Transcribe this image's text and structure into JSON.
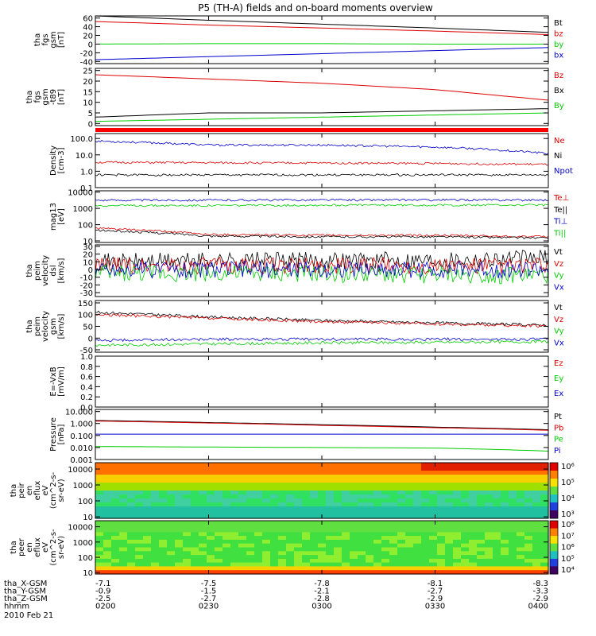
{
  "title": "P5 (TH-A) fields and on-board moments overview",
  "colors": {
    "black": "#000000",
    "red": "#dd0000",
    "green": "#00cc00",
    "blue": "#0000cc",
    "stripe": "#ff0000"
  },
  "panels": [
    {
      "id": "fgs-gsm",
      "ylabel": [
        "tha",
        "fgs",
        "gsm",
        "[nT]"
      ],
      "ticks": [
        "60",
        "40",
        "20",
        "0",
        "-20",
        "-40"
      ],
      "tick_values": [
        60,
        40,
        20,
        0,
        -20,
        -40
      ],
      "ylim": [
        -45,
        65
      ],
      "log": false,
      "legend": [
        {
          "text": "Bt",
          "color": "black"
        },
        {
          "text": "bz",
          "color": "red"
        },
        {
          "text": "by",
          "color": "green"
        },
        {
          "text": "bx",
          "color": "blue"
        }
      ]
    },
    {
      "id": "fgs-t89",
      "ylabel": [
        "tha",
        "fgs",
        "gsm",
        "-t89",
        "[nT]"
      ],
      "ticks": [
        "25",
        "20",
        "15",
        "10",
        "5",
        "0"
      ],
      "tick_values": [
        25,
        20,
        15,
        10,
        5,
        0
      ],
      "ylim": [
        -1,
        26
      ],
      "log": false,
      "legend": [
        {
          "text": "Bz",
          "color": "red"
        },
        {
          "text": "Bx",
          "color": "black"
        },
        {
          "text": "By",
          "color": "green"
        }
      ]
    },
    {
      "id": "density",
      "ylabel": [
        "Density",
        "[cm-3]"
      ],
      "ticks": [
        "100.0",
        "10.0",
        "1.0",
        "0.1"
      ],
      "tick_values": [
        100,
        10,
        1,
        0.1
      ],
      "ylim": [
        0.1,
        200
      ],
      "log": true,
      "legend": [
        {
          "text": "Ne",
          "color": "red"
        },
        {
          "text": "Ni",
          "color": "black"
        },
        {
          "text": "Npot",
          "color": "blue"
        }
      ]
    },
    {
      "id": "temperature",
      "ylabel": [
        "mag13",
        "[eV]"
      ],
      "ticks": [
        "10000",
        "1000",
        "100",
        "10"
      ],
      "tick_values": [
        10000,
        1000,
        100,
        10
      ],
      "ylim": [
        8,
        12000
      ],
      "log": true,
      "legend": [
        {
          "text": "Te⊥",
          "color": "red"
        },
        {
          "text": "Te||",
          "color": "black"
        },
        {
          "text": "Ti⊥",
          "color": "blue"
        },
        {
          "text": "Ti||",
          "color": "green"
        }
      ]
    },
    {
      "id": "peim-velocity",
      "ylabel": [
        "tha",
        "peim",
        "velocity",
        "dsl",
        "[km/s]"
      ],
      "ticks": [
        "30",
        "20",
        "10",
        "0",
        "-10",
        "-20",
        "-30"
      ],
      "tick_values": [
        30,
        20,
        10,
        0,
        -10,
        -20,
        -30
      ],
      "ylim": [
        -35,
        32
      ],
      "log": false,
      "legend": [
        {
          "text": "Vt",
          "color": "black"
        },
        {
          "text": "Vz",
          "color": "red"
        },
        {
          "text": "Vy",
          "color": "green"
        },
        {
          "text": "Vx",
          "color": "blue"
        }
      ]
    },
    {
      "id": "peim-velocity-gsm",
      "ylabel": [
        "tha",
        "peim",
        "velocity",
        "gsm",
        "[km/s]"
      ],
      "ticks": [
        "150",
        "100",
        "50",
        "0",
        "-50"
      ],
      "tick_values": [
        150,
        100,
        50,
        0,
        -50
      ],
      "ylim": [
        -60,
        160
      ],
      "log": false,
      "legend": [
        {
          "text": "Vt",
          "color": "black"
        },
        {
          "text": "Vz",
          "color": "red"
        },
        {
          "text": "Vy",
          "color": "green"
        },
        {
          "text": "Vx",
          "color": "blue"
        }
      ]
    },
    {
      "id": "efield",
      "ylabel": [
        "E=-VxB",
        "[mV/m]"
      ],
      "ticks": [
        "1.0",
        "0.8",
        "0.6",
        "0.4",
        "0.2",
        "0.0"
      ],
      "tick_values": [
        1.0,
        0.8,
        0.6,
        0.4,
        0.2,
        0.0
      ],
      "ylim": [
        0,
        1
      ],
      "log": false,
      "legend": [
        {
          "text": "Ez",
          "color": "red"
        },
        {
          "text": "Ey",
          "color": "green"
        },
        {
          "text": "Ex",
          "color": "blue"
        }
      ]
    },
    {
      "id": "pressure",
      "ylabel": [
        "Pressure",
        "[nPa]"
      ],
      "ticks": [
        "10.000",
        "1.000",
        "0.100",
        "0.010",
        "0.001"
      ],
      "tick_values": [
        10,
        1,
        0.1,
        0.01,
        0.001
      ],
      "ylim": [
        0.001,
        15
      ],
      "log": true,
      "legend": [
        {
          "text": "Pt",
          "color": "black"
        },
        {
          "text": "Pb",
          "color": "red"
        },
        {
          "text": "Pe",
          "color": "green"
        },
        {
          "text": "Pi",
          "color": "blue"
        }
      ]
    },
    {
      "id": "peir-eflux",
      "ylabel": [
        "tha",
        "peir",
        "en",
        "eflux",
        "eV",
        "(cm^2-s-",
        "sr-eV)"
      ],
      "ticks": [
        "10000",
        "1000",
        "100",
        "10"
      ],
      "tick_values": [
        10000,
        1000,
        100,
        10
      ],
      "ylim": [
        8,
        25000
      ],
      "log": true,
      "colorbar": [
        "10⁶",
        "10⁵",
        "10⁴",
        "10³"
      ],
      "legend": []
    },
    {
      "id": "peer-eflux",
      "ylabel": [
        "tha",
        "peer",
        "en",
        "eflux",
        "eV",
        "(cm^2-s-",
        "sr-eV)"
      ],
      "ticks": [
        "10000",
        "1000",
        "100",
        "10"
      ],
      "tick_values": [
        10000,
        1000,
        100,
        10
      ],
      "ylim": [
        8,
        25000
      ],
      "log": true,
      "colorbar": [
        "10⁸",
        "10⁷",
        "10⁶",
        "10⁵",
        "10⁴"
      ],
      "legend": []
    }
  ],
  "xaxis": {
    "rows": [
      {
        "label": "tha_X-GSM",
        "values": [
          "-7.1",
          "-7.5",
          "-7.8",
          "-8.1",
          "-8.3"
        ]
      },
      {
        "label": "tha_Y-GSM",
        "values": [
          "-0.9",
          "-1.5",
          "-2.1",
          "-2.7",
          "-3.3"
        ]
      },
      {
        "label": "tha_Z-GSM",
        "values": [
          "-2.5",
          "-2.7",
          "-2.8",
          "-2.9",
          "-2.9"
        ]
      },
      {
        "label": "hhmm",
        "values": [
          "0200",
          "0230",
          "0300",
          "0330",
          "0400"
        ]
      }
    ],
    "date": "2010 Feb 21"
  },
  "chart_data": {
    "type": "line",
    "title": "P5 (TH-A) fields and on-board moments overview",
    "x": [
      "0200",
      "0230",
      "0300",
      "0330",
      "0400"
    ],
    "panels": [
      {
        "id": "fgs-gsm",
        "series": [
          {
            "name": "Bt",
            "values": [
              65,
              55,
              46,
              37,
              27
            ]
          },
          {
            "name": "bz",
            "values": [
              52,
              44,
              37,
              30,
              22
            ]
          },
          {
            "name": "by",
            "values": [
              0,
              1,
              1,
              0,
              0
            ]
          },
          {
            "name": "bx",
            "values": [
              -36,
              -29,
              -22,
              -15,
              -8
            ]
          }
        ]
      },
      {
        "id": "fgs-t89",
        "series": [
          {
            "name": "Bz",
            "values": [
              23,
              21,
              19,
              16,
              11
            ]
          },
          {
            "name": "Bx",
            "values": [
              3,
              5,
              5,
              6,
              7
            ]
          },
          {
            "name": "By",
            "values": [
              1,
              2,
              3,
              4,
              5
            ]
          }
        ]
      },
      {
        "id": "density",
        "series": [
          {
            "name": "Ne",
            "values": [
              3.5,
              3.3,
              3.2,
              3.0,
              2.6
            ]
          },
          {
            "name": "Ni",
            "values": [
              0.6,
              0.6,
              0.6,
              0.6,
              0.6
            ]
          },
          {
            "name": "Npot",
            "values": [
              70,
              40,
              40,
              30,
              12
            ]
          }
        ]
      },
      {
        "id": "temperature",
        "series": [
          {
            "name": "Te⊥",
            "values": [
              60,
              25,
              22,
              22,
              18
            ]
          },
          {
            "name": "Te||",
            "values": [
              45,
              20,
              18,
              18,
              15
            ]
          },
          {
            "name": "Ti⊥",
            "values": [
              3200,
              3200,
              3300,
              3300,
              3300
            ]
          },
          {
            "name": "Ti||",
            "values": [
              1500,
              1500,
              1600,
              1600,
              1600
            ]
          }
        ]
      },
      {
        "id": "peim-velocity",
        "series": [
          {
            "name": "Vt",
            "values": [
              10,
              12,
              12,
              13,
              15
            ]
          },
          {
            "name": "Vz",
            "values": [
              5,
              5,
              5,
              5,
              5
            ]
          },
          {
            "name": "Vy",
            "values": [
              -5,
              -5,
              -6,
              -7,
              -8
            ]
          },
          {
            "name": "Vx",
            "values": [
              0,
              0,
              0,
              0,
              0
            ]
          }
        ]
      },
      {
        "id": "peim-velocity-gsm",
        "series": [
          {
            "name": "Vt",
            "values": [
              110,
              90,
              75,
              65,
              55
            ]
          },
          {
            "name": "Vz",
            "values": [
              100,
              85,
              70,
              60,
              50
            ]
          },
          {
            "name": "Vy",
            "values": [
              -30,
              -25,
              -20,
              -18,
              -15
            ]
          },
          {
            "name": "Vx",
            "values": [
              -10,
              -5,
              -5,
              -5,
              -5
            ]
          }
        ]
      },
      {
        "id": "pressure",
        "series": [
          {
            "name": "Pt",
            "values": [
              1.8,
              1.2,
              0.8,
              0.5,
              0.3
            ]
          },
          {
            "name": "Pb",
            "values": [
              1.6,
              1.1,
              0.7,
              0.45,
              0.27
            ]
          },
          {
            "name": "Pe",
            "values": [
              0.012,
              0.011,
              0.01,
              0.009,
              0.005
            ]
          },
          {
            "name": "Pi",
            "values": [
              0.13,
              0.13,
              0.13,
              0.13,
              0.13
            ]
          }
        ]
      }
    ]
  }
}
